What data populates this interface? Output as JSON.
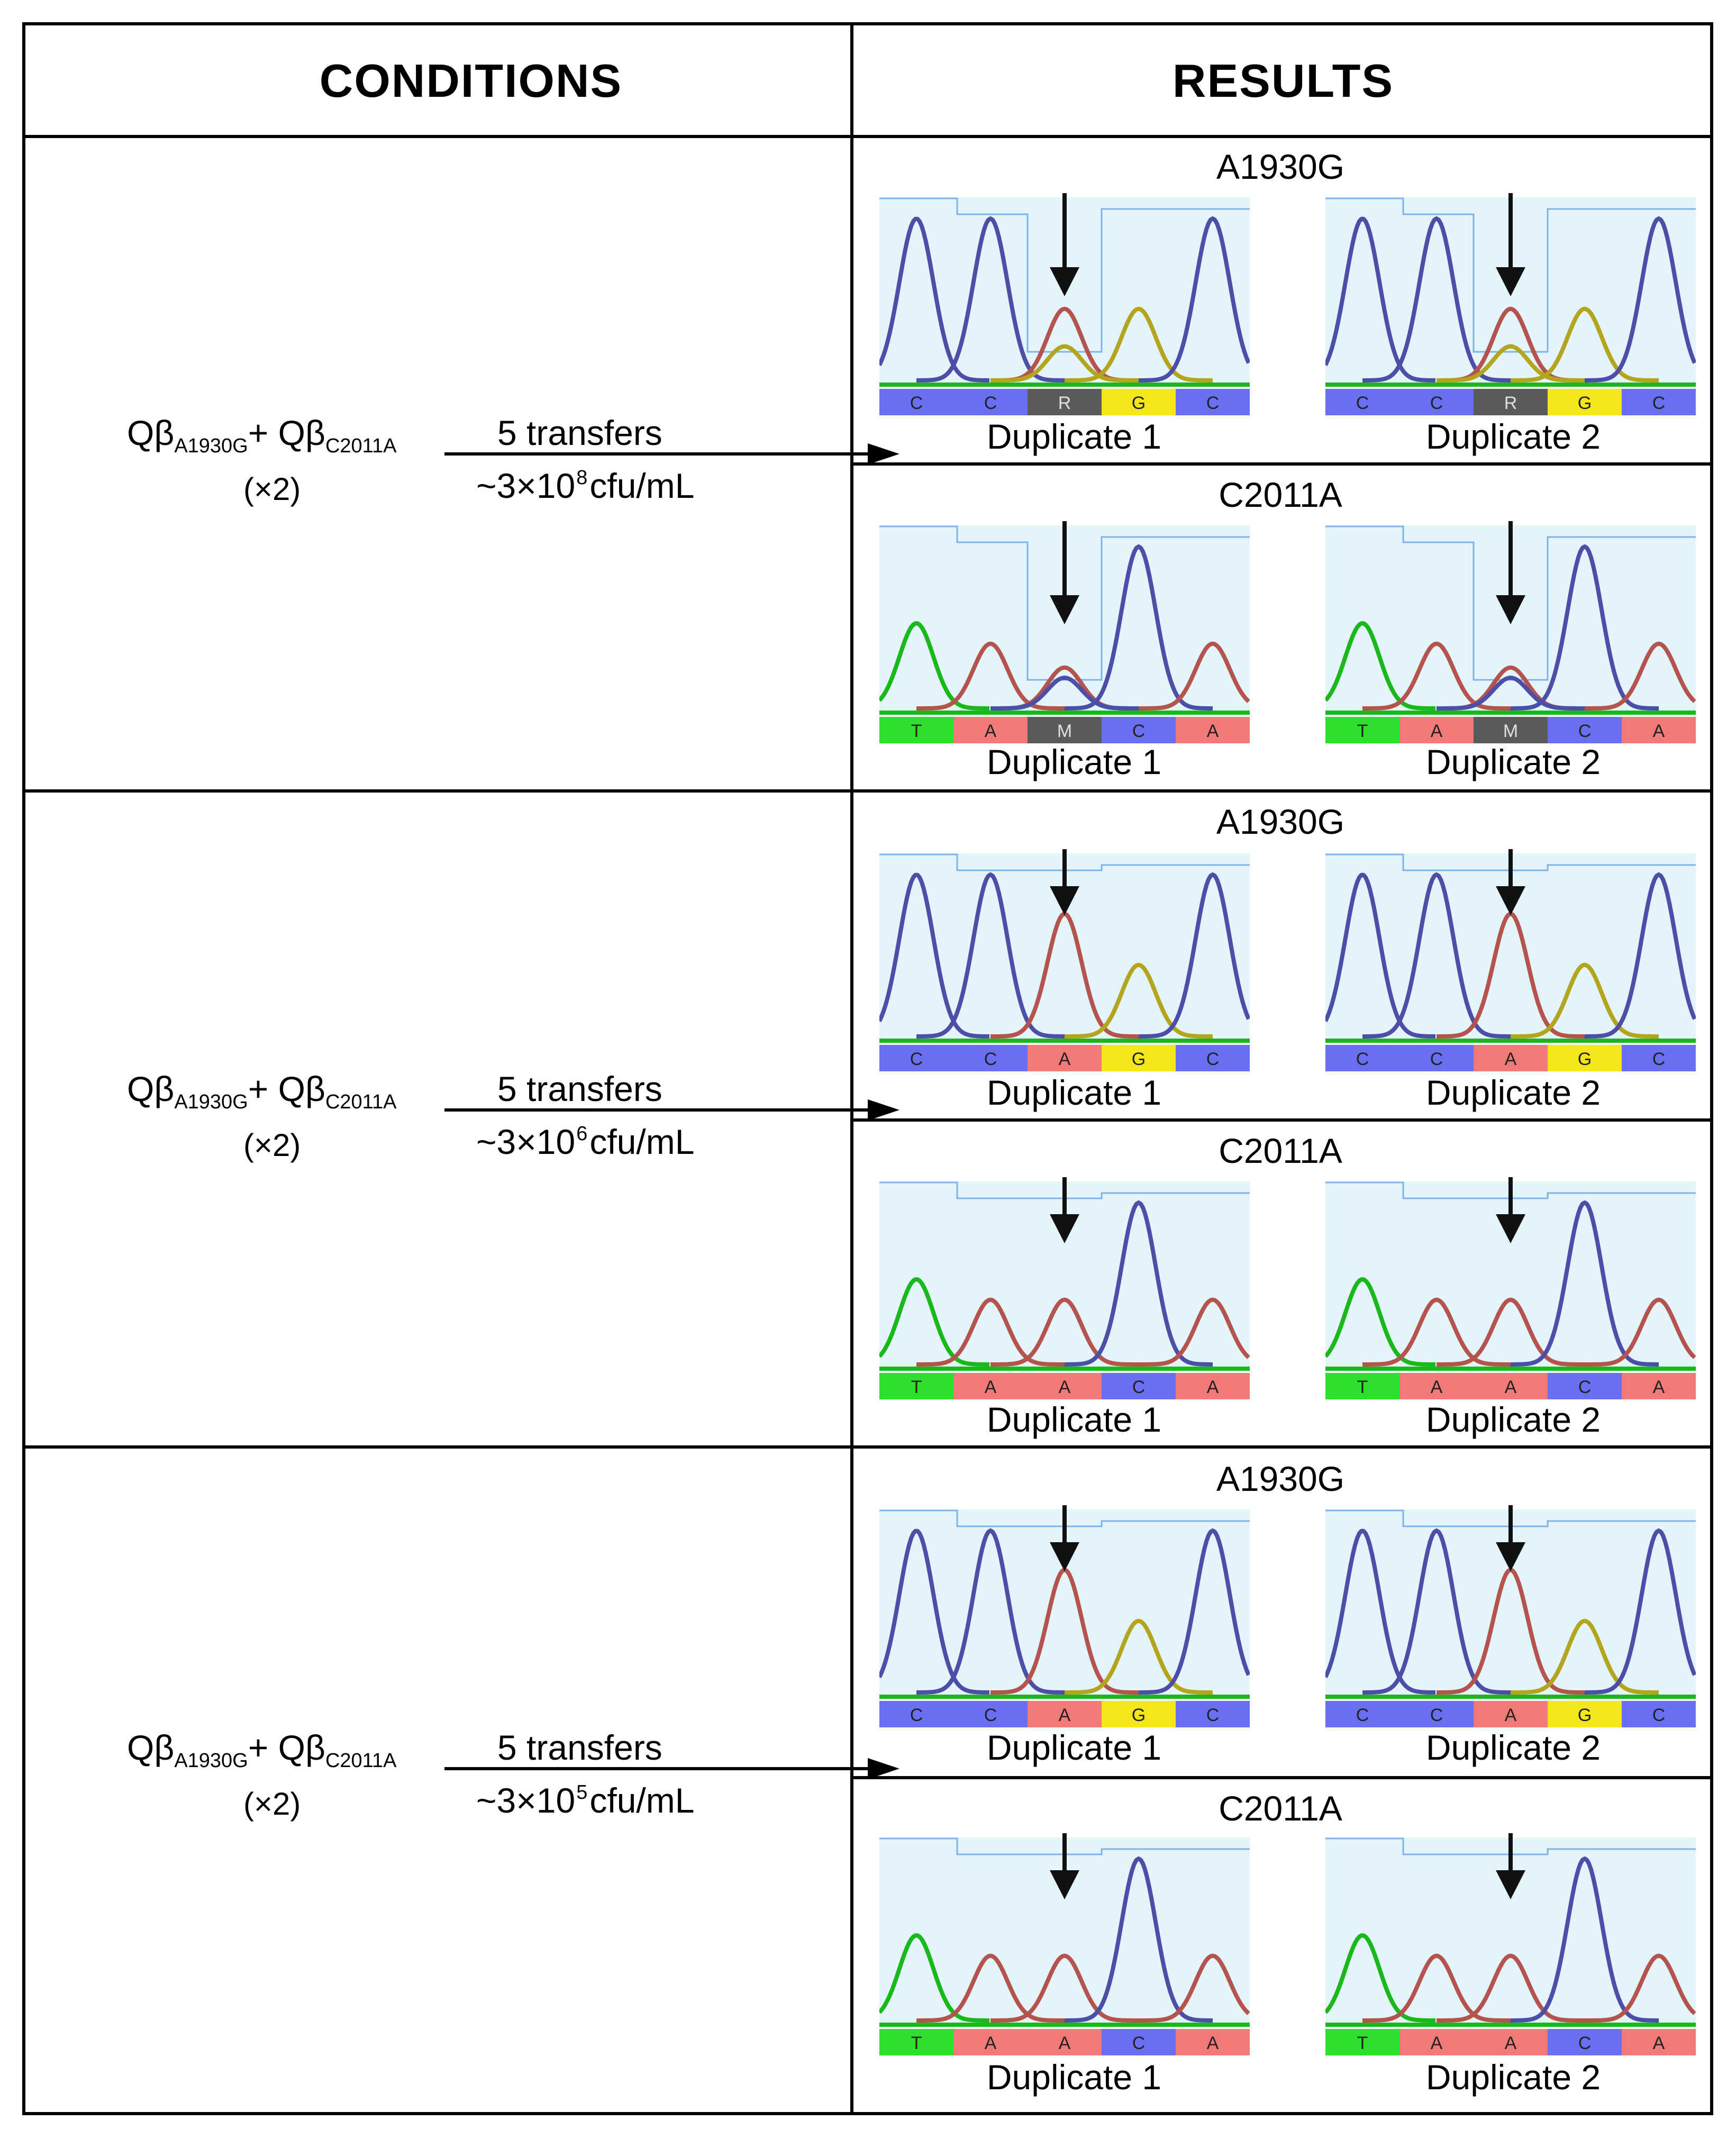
{
  "table": {
    "header_conditions": "CONDITIONS",
    "header_results": "RESULTS"
  },
  "rows": [
    {
      "condition": {
        "mix_prefix": "Qβ",
        "mix_sub1": "A1930G",
        "mix_plus": "+ Qβ",
        "mix_sub2": "C2011A",
        "replicates": "(×2)",
        "transfers": "5 transfers",
        "titer_pre": "~3×10",
        "titer_exp": "8",
        "titer_post": "cfu/mL"
      },
      "results": [
        {
          "mutation": "A1930G",
          "dup1": {
            "label": "Duplicate 1",
            "bases": [
              "C",
              "C",
              "R",
              "G",
              "C"
            ]
          },
          "dup2": {
            "label": "Duplicate 2",
            "bases": [
              "C",
              "C",
              "R",
              "G",
              "C"
            ]
          }
        },
        {
          "mutation": "C2011A",
          "dup1": {
            "label": "Duplicate 1",
            "bases": [
              "T",
              "A",
              "M",
              "C",
              "A"
            ]
          },
          "dup2": {
            "label": "Duplicate 2",
            "bases": [
              "T",
              "A",
              "M",
              "C",
              "A"
            ]
          }
        }
      ]
    },
    {
      "condition": {
        "mix_prefix": "Qβ",
        "mix_sub1": "A1930G",
        "mix_plus": "+ Qβ",
        "mix_sub2": "C2011A",
        "replicates": "(×2)",
        "transfers": "5 transfers",
        "titer_pre": "~3×10",
        "titer_exp": "6",
        "titer_post": "cfu/mL"
      },
      "results": [
        {
          "mutation": "A1930G",
          "dup1": {
            "label": "Duplicate 1",
            "bases": [
              "C",
              "C",
              "A",
              "G",
              "C"
            ]
          },
          "dup2": {
            "label": "Duplicate 2",
            "bases": [
              "C",
              "C",
              "A",
              "G",
              "C"
            ]
          }
        },
        {
          "mutation": "C2011A",
          "dup1": {
            "label": "Duplicate 1",
            "bases": [
              "T",
              "A",
              "A",
              "C",
              "A"
            ]
          },
          "dup2": {
            "label": "Duplicate 2",
            "bases": [
              "T",
              "A",
              "A",
              "C",
              "A"
            ]
          }
        }
      ]
    },
    {
      "condition": {
        "mix_prefix": "Qβ",
        "mix_sub1": "A1930G",
        "mix_plus": "+ Qβ",
        "mix_sub2": "C2011A",
        "replicates": "(×2)",
        "transfers": "5 transfers",
        "titer_pre": "~3×10",
        "titer_exp": "5",
        "titer_post": "cfu/mL"
      },
      "results": [
        {
          "mutation": "A1930G",
          "dup1": {
            "label": "Duplicate 1",
            "bases": [
              "C",
              "C",
              "A",
              "G",
              "C"
            ]
          },
          "dup2": {
            "label": "Duplicate 2",
            "bases": [
              "C",
              "C",
              "A",
              "G",
              "C"
            ]
          }
        },
        {
          "mutation": "C2011A",
          "dup1": {
            "label": "Duplicate 1",
            "bases": [
              "T",
              "A",
              "A",
              "C",
              "A"
            ]
          },
          "dup2": {
            "label": "Duplicate 2",
            "bases": [
              "T",
              "A",
              "A",
              "C",
              "A"
            ]
          }
        }
      ]
    }
  ],
  "colors": {
    "A": "#f07a78",
    "C": "#6a6ef0",
    "G": "#f5e61a",
    "T": "#2ee02e",
    "ambiguous": "#5a5a5a",
    "quality_fill": "#e3f4fa",
    "quality_line": "#7fb3e6",
    "trace_A": "#b5534f",
    "trace_C": "#4b4fa8",
    "trace_G": "#b3a51e",
    "trace_T": "#1ab81a"
  }
}
